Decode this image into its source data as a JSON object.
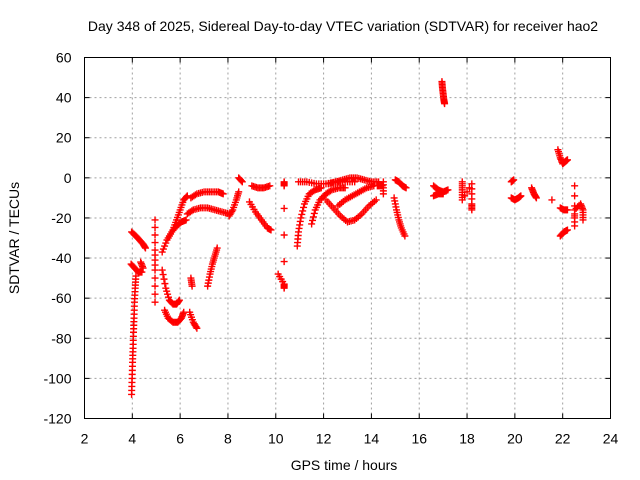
{
  "chart_data": {
    "type": "scatter",
    "title": "Day 348 of 2025, Sidereal Day-to-day VTEC variation (SDTVAR) for receiver hao2",
    "xlabel": "GPS time / hours",
    "ylabel": "SDTVAR / TECUs",
    "xlim": [
      2,
      24
    ],
    "ylim": [
      -120,
      60
    ],
    "x_ticks": [
      2,
      4,
      6,
      8,
      10,
      12,
      14,
      16,
      18,
      20,
      22,
      24
    ],
    "y_ticks": [
      -120,
      -100,
      -80,
      -60,
      -40,
      -20,
      0,
      20,
      40,
      60
    ],
    "x_tick_labels": [
      "2",
      "4",
      "6",
      "8",
      "10",
      "12",
      "14",
      "16",
      "18",
      "20",
      "22",
      "24"
    ],
    "y_tick_labels": [
      "-120",
      "-100",
      "-80",
      "-60",
      "-40",
      "-20",
      "0",
      "20",
      "40",
      "60"
    ],
    "grid": true,
    "marker": "+",
    "marker_color": "#ff0000",
    "series": [
      {
        "name": "s01",
        "points": [
          [
            3.97,
            -27
          ],
          [
            4.15,
            -29
          ],
          [
            4.3,
            -31
          ],
          [
            4.45,
            -33
          ],
          [
            4.55,
            -35
          ]
        ]
      },
      {
        "name": "s02",
        "points": [
          [
            3.97,
            -108
          ],
          [
            3.99,
            -100
          ],
          [
            4.01,
            -92
          ],
          [
            4.03,
            -85
          ],
          [
            4.05,
            -77
          ],
          [
            4.07,
            -70
          ],
          [
            4.09,
            -62
          ],
          [
            4.12,
            -55
          ],
          [
            4.15,
            -49
          ]
        ]
      },
      {
        "name": "s03",
        "points": [
          [
            3.95,
            -43
          ],
          [
            4.1,
            -45
          ],
          [
            4.25,
            -47
          ],
          [
            4.4,
            -47
          ]
        ]
      },
      {
        "name": "s04",
        "points": [
          [
            4.35,
            -42
          ],
          [
            4.45,
            -45
          ]
        ]
      },
      {
        "name": "s05",
        "points": [
          [
            4.95,
            -21
          ],
          [
            4.95,
            -36
          ],
          [
            4.95,
            -46
          ],
          [
            4.95,
            -62
          ]
        ]
      },
      {
        "name": "s06",
        "points": [
          [
            5.25,
            -37
          ],
          [
            5.45,
            -31
          ],
          [
            5.65,
            -27
          ],
          [
            5.85,
            -24
          ],
          [
            6.05,
            -22
          ],
          [
            6.25,
            -21
          ]
        ]
      },
      {
        "name": "s07",
        "points": [
          [
            5.25,
            -46
          ],
          [
            5.4,
            -55
          ],
          [
            5.55,
            -61
          ],
          [
            5.7,
            -63
          ],
          [
            5.85,
            -63
          ],
          [
            5.97,
            -61
          ]
        ]
      },
      {
        "name": "s08",
        "points": [
          [
            5.35,
            -66
          ],
          [
            5.5,
            -70
          ],
          [
            5.7,
            -72
          ],
          [
            5.9,
            -72
          ],
          [
            6.05,
            -70
          ],
          [
            6.15,
            -67
          ]
        ]
      },
      {
        "name": "s09",
        "points": [
          [
            5.7,
            -26
          ],
          [
            5.85,
            -21
          ],
          [
            6.0,
            -16
          ],
          [
            6.15,
            -11
          ],
          [
            6.3,
            -9
          ]
        ]
      },
      {
        "name": "s10",
        "points": [
          [
            6.3,
            -18
          ],
          [
            6.55,
            -16
          ],
          [
            6.85,
            -15
          ],
          [
            7.15,
            -15
          ],
          [
            7.45,
            -16
          ],
          [
            7.75,
            -17
          ],
          [
            8.05,
            -18
          ]
        ]
      },
      {
        "name": "s11",
        "points": [
          [
            6.45,
            -10
          ],
          [
            6.7,
            -8
          ],
          [
            7.0,
            -7
          ],
          [
            7.3,
            -7
          ],
          [
            7.6,
            -7
          ],
          [
            7.8,
            -8
          ]
        ]
      },
      {
        "name": "s12",
        "points": [
          [
            6.4,
            -67
          ],
          [
            6.55,
            -72
          ],
          [
            6.7,
            -75
          ]
        ]
      },
      {
        "name": "s13",
        "points": [
          [
            6.45,
            -50
          ],
          [
            6.5,
            -54
          ]
        ]
      },
      {
        "name": "s14",
        "points": [
          [
            7.15,
            -54
          ],
          [
            7.25,
            -48
          ],
          [
            7.35,
            -43
          ],
          [
            7.45,
            -39
          ],
          [
            7.55,
            -35
          ]
        ]
      },
      {
        "name": "s15",
        "points": [
          [
            8.05,
            -19
          ],
          [
            8.2,
            -16
          ],
          [
            8.35,
            -11
          ],
          [
            8.45,
            -7
          ]
        ]
      },
      {
        "name": "s16",
        "points": [
          [
            8.45,
            0
          ],
          [
            8.6,
            -2
          ]
        ]
      },
      {
        "name": "s17",
        "points": [
          [
            9.0,
            -4
          ],
          [
            9.25,
            -5
          ],
          [
            9.5,
            -5
          ],
          [
            9.75,
            -4
          ]
        ]
      },
      {
        "name": "s18",
        "points": [
          [
            8.9,
            -12
          ],
          [
            9.15,
            -17
          ],
          [
            9.4,
            -21
          ],
          [
            9.65,
            -25
          ],
          [
            9.8,
            -26
          ]
        ]
      },
      {
        "name": "s19",
        "points": [
          [
            10.1,
            -48
          ],
          [
            10.35,
            -53
          ],
          [
            10.35,
            -55
          ],
          [
            10.35,
            -2
          ],
          [
            10.35,
            -4
          ]
        ]
      },
      {
        "name": "s20",
        "points": [
          [
            10.9,
            -34
          ],
          [
            10.95,
            -27
          ],
          [
            11.05,
            -20
          ],
          [
            11.2,
            -13
          ],
          [
            11.4,
            -8
          ],
          [
            11.65,
            -6
          ],
          [
            11.9,
            -5
          ]
        ]
      },
      {
        "name": "s21",
        "points": [
          [
            11.5,
            -23
          ],
          [
            11.65,
            -16
          ],
          [
            11.85,
            -11
          ],
          [
            12.1,
            -8
          ],
          [
            12.35,
            -6
          ],
          [
            12.65,
            -5
          ],
          [
            12.9,
            -5
          ]
        ]
      },
      {
        "name": "s22",
        "points": [
          [
            10.95,
            -2
          ],
          [
            11.3,
            -2
          ],
          [
            11.7,
            -3
          ],
          [
            12.1,
            -3
          ],
          [
            12.5,
            -2
          ],
          [
            12.9,
            -2
          ],
          [
            13.3,
            -2
          ]
        ]
      },
      {
        "name": "s23",
        "points": [
          [
            12.1,
            -11
          ],
          [
            12.4,
            -15
          ],
          [
            12.7,
            -19
          ],
          [
            13.0,
            -22
          ],
          [
            13.3,
            -21
          ],
          [
            13.6,
            -18
          ],
          [
            13.9,
            -14
          ],
          [
            14.2,
            -11
          ]
        ]
      },
      {
        "name": "s24",
        "points": [
          [
            12.2,
            -3
          ],
          [
            12.5,
            -2
          ],
          [
            12.8,
            -1
          ],
          [
            13.1,
            0
          ],
          [
            13.4,
            0
          ],
          [
            13.7,
            -1
          ],
          [
            14.0,
            -2
          ],
          [
            14.3,
            -2
          ]
        ]
      },
      {
        "name": "s25",
        "points": [
          [
            12.6,
            -14
          ],
          [
            12.9,
            -11
          ],
          [
            13.2,
            -9
          ],
          [
            13.5,
            -7
          ],
          [
            13.8,
            -5
          ],
          [
            14.1,
            -4
          ]
        ]
      },
      {
        "name": "s26",
        "points": [
          [
            14.25,
            -4
          ],
          [
            14.45,
            -4
          ]
        ]
      },
      {
        "name": "s27",
        "points": [
          [
            14.5,
            -2
          ],
          [
            14.5,
            -8
          ]
        ]
      },
      {
        "name": "s28",
        "points": [
          [
            15.0,
            -1
          ],
          [
            15.15,
            -2
          ],
          [
            15.3,
            -4
          ],
          [
            15.45,
            -5
          ]
        ]
      },
      {
        "name": "s29",
        "points": [
          [
            14.95,
            -10
          ],
          [
            15.05,
            -16
          ],
          [
            15.15,
            -21
          ],
          [
            15.25,
            -25
          ],
          [
            15.4,
            -29
          ]
        ]
      },
      {
        "name": "s30",
        "points": [
          [
            16.6,
            -4
          ],
          [
            16.8,
            -6
          ],
          [
            17.0,
            -7
          ],
          [
            17.2,
            -6
          ]
        ]
      },
      {
        "name": "s31",
        "points": [
          [
            16.6,
            -9
          ],
          [
            16.8,
            -8
          ],
          [
            17.0,
            -8
          ]
        ]
      },
      {
        "name": "s32",
        "points": [
          [
            16.95,
            48
          ],
          [
            16.97,
            45
          ],
          [
            17.0,
            42
          ],
          [
            17.03,
            39
          ],
          [
            17.06,
            37
          ]
        ]
      },
      {
        "name": "s33",
        "points": [
          [
            17.8,
            -2
          ],
          [
            17.8,
            -6
          ],
          [
            17.8,
            -11
          ],
          [
            18.2,
            -3
          ],
          [
            18.2,
            -13
          ],
          [
            18.2,
            -16
          ]
        ]
      },
      {
        "name": "s34",
        "points": [
          [
            19.85,
            -2
          ],
          [
            19.95,
            -1
          ]
        ]
      },
      {
        "name": "s35",
        "points": [
          [
            19.85,
            -10
          ],
          [
            20.0,
            -11
          ],
          [
            20.15,
            -10
          ],
          [
            20.25,
            -9
          ]
        ]
      },
      {
        "name": "s36",
        "points": [
          [
            20.7,
            -5
          ],
          [
            20.8,
            -8
          ],
          [
            20.9,
            -10
          ]
        ]
      },
      {
        "name": "s37",
        "points": [
          [
            21.55,
            -11
          ]
        ]
      },
      {
        "name": "s38",
        "points": [
          [
            21.8,
            14
          ],
          [
            21.9,
            10
          ],
          [
            22.0,
            7
          ],
          [
            22.1,
            8
          ],
          [
            22.2,
            9
          ]
        ]
      },
      {
        "name": "s39",
        "points": [
          [
            21.9,
            -15
          ],
          [
            22.05,
            -16
          ],
          [
            22.2,
            -16
          ]
        ]
      },
      {
        "name": "s40",
        "points": [
          [
            21.9,
            -29
          ],
          [
            22.05,
            -27
          ],
          [
            22.2,
            -26
          ]
        ]
      },
      {
        "name": "s41",
        "points": [
          [
            22.5,
            -4
          ],
          [
            22.5,
            -24
          ],
          [
            22.5,
            -16
          ],
          [
            22.75,
            -13
          ],
          [
            22.85,
            -16
          ],
          [
            22.85,
            -21
          ]
        ]
      }
    ]
  }
}
